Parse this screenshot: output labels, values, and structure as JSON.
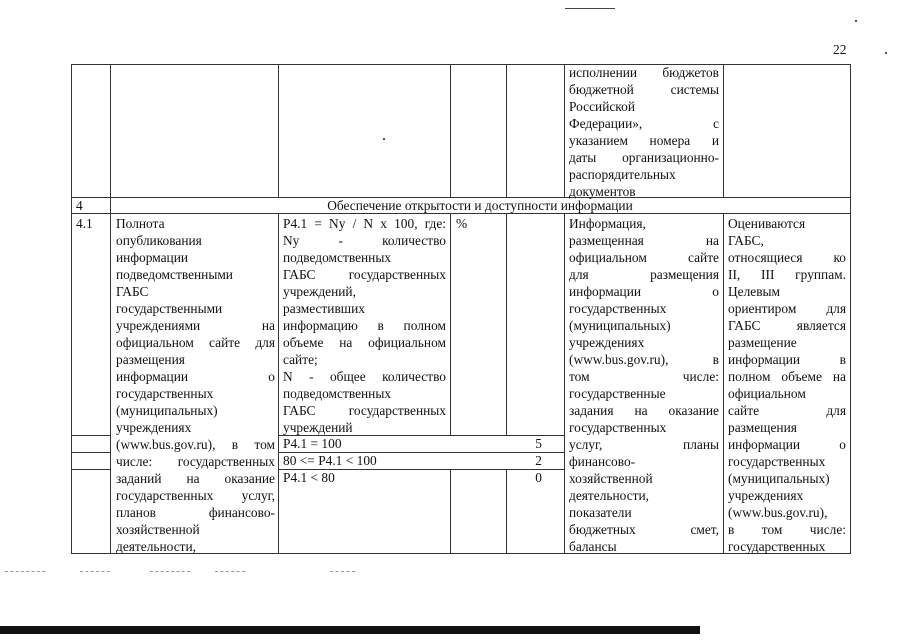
{
  "page_number": "22",
  "row_continuation": {
    "source_lines": [
      "исполнении бюджетов",
      "бюджетной системы",
      "Российской",
      "Федерации», с",
      "указанием номера и",
      "даты организационно-",
      "распорядительных",
      "документов"
    ]
  },
  "section": {
    "number": "4",
    "title": "Обеспечение открытости и доступности информации"
  },
  "indicator": {
    "number": "4.1",
    "name_lines": [
      "Полнота",
      "опубликования",
      "информации",
      "подведомственными",
      "ГАБС",
      "государственными",
      "учреждениями на",
      "официальном сайте для",
      "размещения",
      "информации о",
      "государственных",
      "(муниципальных)",
      "учреждениях",
      "(www.bus.gov.ru), в том",
      "числе: государственных",
      "заданий на оказание",
      "государственных услуг,",
      "планов финансово-",
      "хозяйственной",
      "деятельности,"
    ],
    "formula_lines": [
      "P4.1 = Ny / N x 100, где:",
      "Ny - количество",
      "подведомственных",
      "ГАБС государственных",
      "учреждений,",
      "разместивших",
      "информацию в полном",
      "объеме на официальном",
      "сайте;",
      "N - общее количество",
      "подведомственных",
      "ГАБС государственных",
      "учреждений"
    ],
    "unit": "%",
    "scores": [
      {
        "condition": "P4.1 = 100",
        "points": "5"
      },
      {
        "condition": "80 <= P4.1 < 100",
        "points": "2"
      },
      {
        "condition": "P4.1 < 80",
        "points": "0"
      }
    ],
    "source_lines": [
      "Информация,",
      "размещенная на",
      "официальном сайте",
      "для размещения",
      "информации о",
      "государственных",
      "(муниципальных)",
      "учреждениях",
      "(www.bus.gov.ru), в",
      "том числе:",
      "государственные",
      "задания на оказание",
      "государственных",
      "услуг, планы",
      "финансово-",
      "хозяйственной",
      "деятельности,",
      "показатели",
      "бюджетных смет,",
      "балансы"
    ],
    "comment_lines": [
      "Оцениваются",
      "ГАБС,",
      "относящиеся ко",
      "II, III группам.",
      "Целевым",
      "ориентиром для",
      "ГАБС является",
      "размещение",
      "информации в",
      "полном объеме на",
      "официальном",
      "сайте для",
      "размещения",
      "информации о",
      "государственных",
      "(муниципальных)",
      "учреждениях",
      "(www.bus.gov.ru),",
      "в том числе:",
      "государственных"
    ]
  }
}
